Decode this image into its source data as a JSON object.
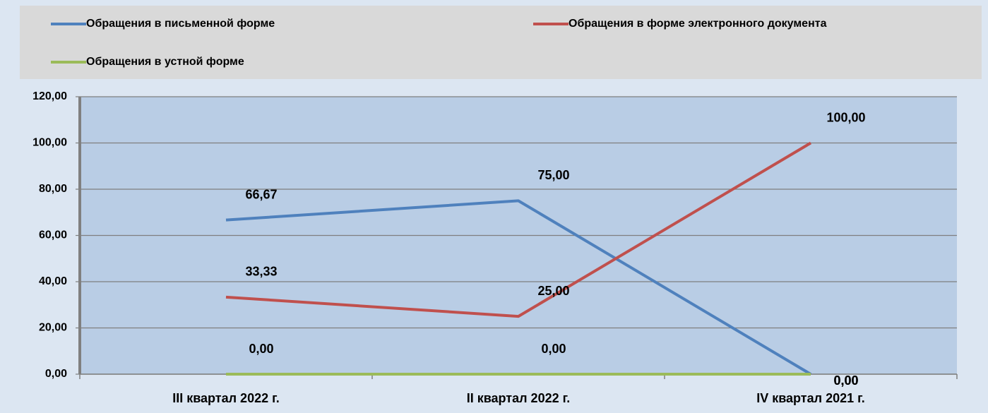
{
  "chart_data": {
    "type": "line",
    "categories": [
      "III квартал 2022 г.",
      "II квартал 2022 г.",
      "IV квартал 2021 г."
    ],
    "series": [
      {
        "name": "Обращения в письменной форме",
        "color": "#4f81bd",
        "values": [
          66.67,
          75,
          0
        ],
        "value_labels": [
          "66,67",
          "75,00",
          "0,00"
        ]
      },
      {
        "name": "Обращения в форме электронного документа",
        "color": "#c0504d",
        "values": [
          33.33,
          25,
          100
        ],
        "value_labels": [
          "33,33",
          "25,00",
          "100,00"
        ]
      },
      {
        "name": "Обращения в устной форме",
        "color": "#9bbb59",
        "values": [
          0,
          0,
          0
        ],
        "value_labels": [
          "0,00",
          "0,00",
          "0,00"
        ]
      }
    ],
    "ylim": [
      0,
      120
    ],
    "yticks": [
      {
        "value": 0,
        "label": "0,00"
      },
      {
        "value": 20,
        "label": "20,00"
      },
      {
        "value": 40,
        "label": "40,00"
      },
      {
        "value": 60,
        "label": "60,00"
      },
      {
        "value": 80,
        "label": "80,00"
      },
      {
        "value": 100,
        "label": "100,00"
      },
      {
        "value": 120,
        "label": "120,00"
      }
    ],
    "grid": true
  }
}
